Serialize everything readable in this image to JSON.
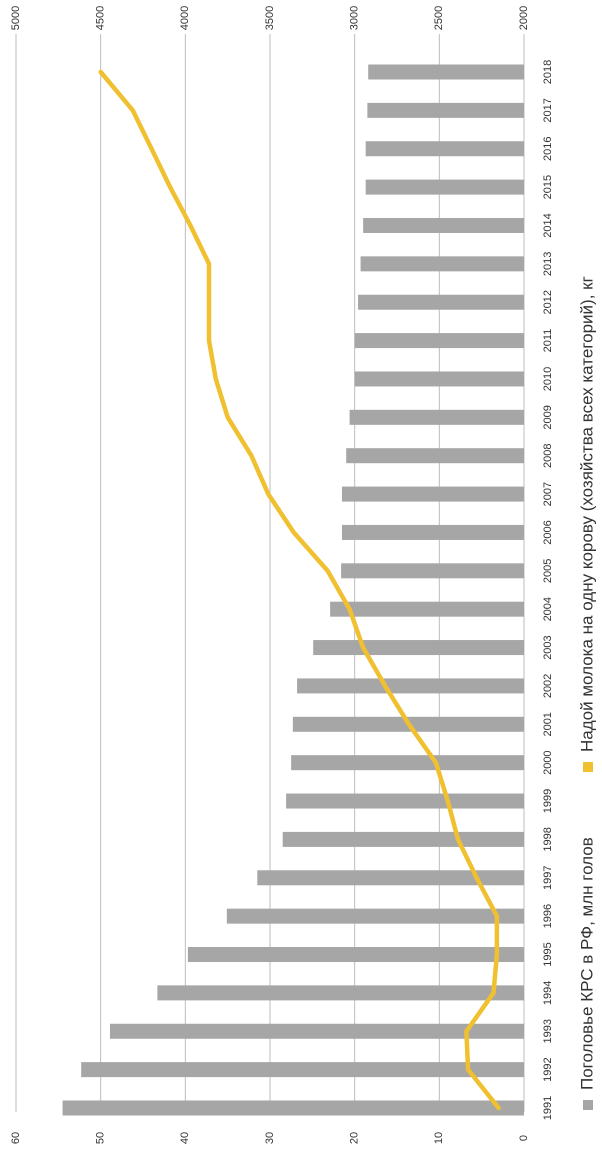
{
  "chart_data": {
    "type": "bar+line",
    "categories": [
      "1991",
      "1992",
      "1993",
      "1994",
      "1995",
      "1996",
      "1997",
      "1998",
      "1999",
      "2000",
      "2001",
      "2002",
      "2003",
      "2004",
      "2005",
      "2006",
      "2007",
      "2008",
      "2009",
      "2010",
      "2011",
      "2012",
      "2013",
      "2014",
      "2015",
      "2016",
      "2017",
      "2018"
    ],
    "series": [
      {
        "name": "Поголовье КРС в РФ, млн голов",
        "type": "bar",
        "axis": "left",
        "color": "#a6a6a6",
        "values": [
          54.5,
          52.3,
          48.9,
          43.3,
          39.7,
          35.1,
          31.5,
          28.5,
          28.1,
          27.5,
          27.3,
          26.8,
          24.9,
          22.9,
          21.6,
          21.5,
          21.5,
          21.0,
          20.6,
          20.0,
          20.0,
          19.6,
          19.3,
          19.0,
          18.7,
          18.7,
          18.5,
          18.4
        ]
      },
      {
        "name": "Надой молока на одну корову (хозяйства всех категорий), кг",
        "type": "line",
        "axis": "right",
        "color": "#f0c030",
        "values": [
          2150,
          2330,
          2340,
          2180,
          2160,
          2160,
          2280,
          2390,
          2450,
          2520,
          2680,
          2820,
          2950,
          3030,
          3160,
          3360,
          3510,
          3610,
          3750,
          3820,
          3860,
          3860,
          3860,
          3970,
          4090,
          4200,
          4310,
          4500
        ]
      }
    ],
    "left_axis": {
      "ticks": [
        "0",
        "10",
        "20",
        "30",
        "40",
        "50",
        "60"
      ],
      "range": [
        0,
        60
      ]
    },
    "right_axis": {
      "ticks": [
        "2000",
        "2500",
        "3000",
        "3500",
        "4000",
        "4500",
        "5000"
      ],
      "range": [
        2000,
        5000
      ]
    },
    "grid": "horizontal",
    "legend_position": "bottom",
    "legend_icon": "square-icon"
  }
}
